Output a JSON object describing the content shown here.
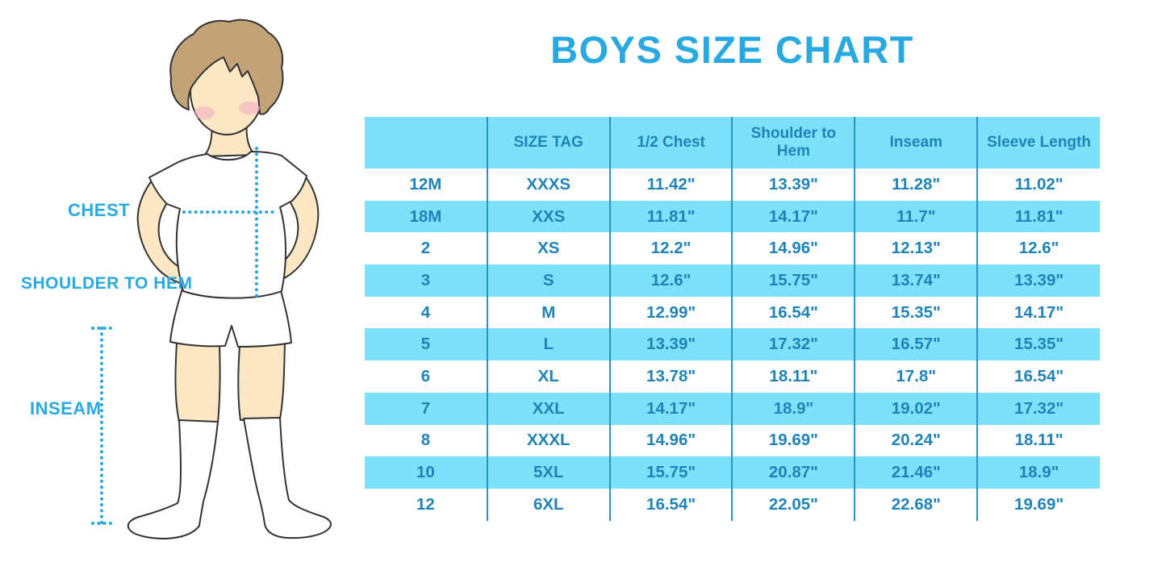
{
  "title": "BOYS SIZE CHART",
  "colors": {
    "accent": "#29A9E1",
    "row-cyan": "#7CE1F9",
    "table-text": "#1E84B8",
    "divider": "#2A93C4",
    "skin": "#FBE7C3",
    "hair": "#C2A377",
    "blush": "#F2AFC1",
    "outline": "#333333"
  },
  "figure": {
    "labels": {
      "chest": "CHEST",
      "shoulder_to_hem": "SHOULDER TO HEM",
      "inseam": "INSEAM"
    }
  },
  "table": {
    "columns": [
      "",
      "SIZE TAG",
      "1/2 Chest",
      "Shoulder to Hem",
      "Inseam",
      "Sleeve Length"
    ],
    "rows": [
      [
        "12M",
        "XXXS",
        "11.42\"",
        "13.39\"",
        "11.28\"",
        "11.02\""
      ],
      [
        "18M",
        "XXS",
        "11.81\"",
        "14.17\"",
        "11.7\"",
        "11.81\""
      ],
      [
        "2",
        "XS",
        "12.2\"",
        "14.96\"",
        "12.13\"",
        "12.6\""
      ],
      [
        "3",
        "S",
        "12.6\"",
        "15.75\"",
        "13.74\"",
        "13.39\""
      ],
      [
        "4",
        "M",
        "12.99\"",
        "16.54\"",
        "15.35\"",
        "14.17\""
      ],
      [
        "5",
        "L",
        "13.39\"",
        "17.32\"",
        "16.57\"",
        "15.35\""
      ],
      [
        "6",
        "XL",
        "13.78\"",
        "18.11\"",
        "17.8\"",
        "16.54\""
      ],
      [
        "7",
        "XXL",
        "14.17\"",
        "18.9\"",
        "19.02\"",
        "17.32\""
      ],
      [
        "8",
        "XXXL",
        "14.96\"",
        "19.69\"",
        "20.24\"",
        "18.11\""
      ],
      [
        "10",
        "5XL",
        "15.75\"",
        "20.87\"",
        "21.46\"",
        "18.9\""
      ],
      [
        "12",
        "6XL",
        "16.54\"",
        "22.05\"",
        "22.68\"",
        "19.69\""
      ]
    ]
  },
  "chart_data": {
    "type": "table",
    "title": "BOYS SIZE CHART",
    "columns": [
      "",
      "SIZE TAG",
      "1/2 Chest",
      "Shoulder to Hem",
      "Inseam",
      "Sleeve Length"
    ],
    "rows": [
      [
        "12M",
        "XXXS",
        "11.42\"",
        "13.39\"",
        "11.28\"",
        "11.02\""
      ],
      [
        "18M",
        "XXS",
        "11.81\"",
        "14.17\"",
        "11.7\"",
        "11.81\""
      ],
      [
        "2",
        "XS",
        "12.2\"",
        "14.96\"",
        "12.13\"",
        "12.6\""
      ],
      [
        "3",
        "S",
        "12.6\"",
        "15.75\"",
        "13.74\"",
        "13.39\""
      ],
      [
        "4",
        "M",
        "12.99\"",
        "16.54\"",
        "15.35\"",
        "14.17\""
      ],
      [
        "5",
        "L",
        "13.39\"",
        "17.32\"",
        "16.57\"",
        "15.35\""
      ],
      [
        "6",
        "XL",
        "13.78\"",
        "18.11\"",
        "17.8\"",
        "16.54\""
      ],
      [
        "7",
        "XXL",
        "14.17\"",
        "18.9\"",
        "19.02\"",
        "17.32\""
      ],
      [
        "8",
        "XXXL",
        "14.96\"",
        "19.69\"",
        "20.24\"",
        "18.11\""
      ],
      [
        "10",
        "5XL",
        "15.75\"",
        "20.87\"",
        "21.46\"",
        "18.9\""
      ],
      [
        "12",
        "6XL",
        "16.54\"",
        "22.05\"",
        "22.68\"",
        "19.69\""
      ]
    ],
    "notes": "Alternating cyan/white striped rows; header row cyan; measurements illustrated on boy figure: chest width, shoulder to hem, inseam"
  }
}
